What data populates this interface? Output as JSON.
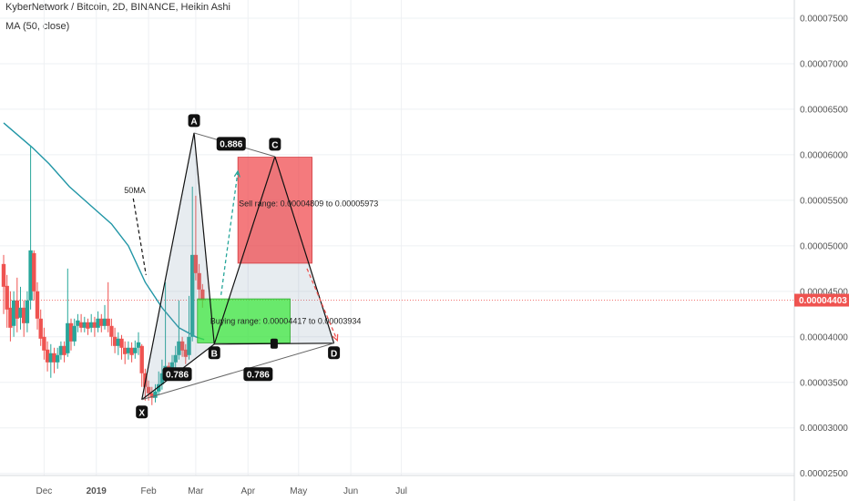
{
  "header": {
    "title": "KyberNetwork / Bitcoin, 2D, BINANCE, Heikin Ashi",
    "indicator": "MA (50, close)"
  },
  "chart_data": {
    "type": "candlestick",
    "chart_style": "Heikin Ashi",
    "x_ticks": [
      "Dec",
      "2019",
      "Feb",
      "Mar",
      "Apr",
      "May",
      "Jun",
      "Jul"
    ],
    "y_ticks": [
      "0.00007500",
      "0.00007000",
      "0.00006500",
      "0.00006000",
      "0.00005500",
      "0.00005000",
      "0.00004500",
      "0.00004000",
      "0.00003500",
      "0.00003000",
      "0.00002500"
    ],
    "ylim": [
      2.32e-05,
      7.72e-05
    ],
    "grid": true,
    "current_price": {
      "value": 4.403e-05,
      "label": "0.00004403",
      "color": "#ef5350"
    },
    "colors": {
      "up": "#26a69a",
      "down": "#ef5350",
      "ma": "#2196a6"
    },
    "ma_curve": [
      {
        "x": "2018-11-07",
        "y": 6.35e-05
      },
      {
        "x": "2018-11-24",
        "y": 6.08e-05
      },
      {
        "x": "2018-12-04",
        "y": 5.9e-05
      },
      {
        "x": "2018-12-16",
        "y": 5.65e-05
      },
      {
        "x": "2018-12-30",
        "y": 5.42e-05
      },
      {
        "x": "2019-01-10",
        "y": 5.24e-05
      },
      {
        "x": "2019-01-20",
        "y": 5e-05
      },
      {
        "x": "2019-01-30",
        "y": 4.6e-05
      },
      {
        "x": "2019-02-09",
        "y": 4.32e-05
      },
      {
        "x": "2019-02-19",
        "y": 4.1e-05
      },
      {
        "x": "2019-03-01",
        "y": 4e-05
      },
      {
        "x": "2019-03-06",
        "y": 3.97e-05
      }
    ],
    "candles": [
      {
        "t": "2018-11-07",
        "o": 4.8e-05,
        "c": 4.55e-05,
        "h": 4.9e-05,
        "l": 4.25e-05
      },
      {
        "t": "2018-11-09",
        "o": 4.56e-05,
        "c": 4.3e-05,
        "h": 4.68e-05,
        "l": 4.1e-05
      },
      {
        "t": "2018-11-11",
        "o": 4.32e-05,
        "c": 4.1e-05,
        "h": 4.5e-05,
        "l": 3.95e-05
      },
      {
        "t": "2018-11-13",
        "o": 4.12e-05,
        "c": 4.4e-05,
        "h": 4.5e-05,
        "l": 4e-05
      },
      {
        "t": "2018-11-15",
        "o": 4.4e-05,
        "c": 4.2e-05,
        "h": 4.65e-05,
        "l": 4.05e-05
      },
      {
        "t": "2018-11-17",
        "o": 4.21e-05,
        "c": 4.32e-05,
        "h": 4.55e-05,
        "l": 4.08e-05
      },
      {
        "t": "2018-11-19",
        "o": 4.32e-05,
        "c": 4.15e-05,
        "h": 4.4e-05,
        "l": 4e-05
      },
      {
        "t": "2018-11-21",
        "o": 4.15e-05,
        "c": 4.4e-05,
        "h": 4.5e-05,
        "l": 4.05e-05
      },
      {
        "t": "2018-11-23",
        "o": 4.4e-05,
        "c": 4.95e-05,
        "h": 6.1e-05,
        "l": 4.3e-05
      },
      {
        "t": "2018-11-25",
        "o": 4.92e-05,
        "c": 4.5e-05,
        "h": 4.95e-05,
        "l": 4.4e-05
      },
      {
        "t": "2018-11-27",
        "o": 4.5e-05,
        "c": 4.2e-05,
        "h": 4.6e-05,
        "l": 4.08e-05
      },
      {
        "t": "2018-11-29",
        "o": 4.2e-05,
        "c": 3.98e-05,
        "h": 4.3e-05,
        "l": 3.9e-05
      },
      {
        "t": "2018-12-01",
        "o": 4e-05,
        "c": 3.85e-05,
        "h": 4.1e-05,
        "l": 3.75e-05
      },
      {
        "t": "2018-12-03",
        "o": 3.86e-05,
        "c": 3.72e-05,
        "h": 3.95e-05,
        "l": 3.62e-05
      },
      {
        "t": "2018-12-05",
        "o": 3.72e-05,
        "c": 3.82e-05,
        "h": 3.92e-05,
        "l": 3.55e-05
      },
      {
        "t": "2018-12-07",
        "o": 3.82e-05,
        "c": 3.72e-05,
        "h": 3.88e-05,
        "l": 3.6e-05
      },
      {
        "t": "2018-12-09",
        "o": 3.72e-05,
        "c": 3.8e-05,
        "h": 3.88e-05,
        "l": 3.65e-05
      },
      {
        "t": "2018-12-11",
        "o": 3.8e-05,
        "c": 3.9e-05,
        "h": 3.95e-05,
        "l": 3.75e-05
      },
      {
        "t": "2018-12-13",
        "o": 3.9e-05,
        "c": 3.8e-05,
        "h": 3.95e-05,
        "l": 3.72e-05
      },
      {
        "t": "2018-12-15",
        "o": 3.82e-05,
        "c": 4.15e-05,
        "h": 4.75e-05,
        "l": 3.78e-05
      },
      {
        "t": "2018-12-17",
        "o": 4.15e-05,
        "c": 3.95e-05,
        "h": 4.2e-05,
        "l": 3.85e-05
      },
      {
        "t": "2018-12-19",
        "o": 3.95e-05,
        "c": 4.12e-05,
        "h": 4.2e-05,
        "l": 3.9e-05
      },
      {
        "t": "2018-12-21",
        "o": 4.12e-05,
        "c": 4.18e-05,
        "h": 4.25e-05,
        "l": 4.05e-05
      },
      {
        "t": "2018-12-23",
        "o": 4.16e-05,
        "c": 4.1e-05,
        "h": 4.25e-05,
        "l": 4.05e-05
      },
      {
        "t": "2018-12-25",
        "o": 4.1e-05,
        "c": 4.16e-05,
        "h": 4.22e-05,
        "l": 4.05e-05
      },
      {
        "t": "2018-12-27",
        "o": 4.16e-05,
        "c": 4.09e-05,
        "h": 4.2e-05,
        "l": 4.02e-05
      },
      {
        "t": "2018-12-29",
        "o": 4.1e-05,
        "c": 4.16e-05,
        "h": 4.25e-05,
        "l": 4.05e-05
      },
      {
        "t": "2018-12-31",
        "o": 4.16e-05,
        "c": 4.1e-05,
        "h": 4.22e-05,
        "l": 4e-05
      },
      {
        "t": "2019-01-02",
        "o": 4.1e-05,
        "c": 4.2e-05,
        "h": 4.28e-05,
        "l": 4.05e-05
      },
      {
        "t": "2019-01-04",
        "o": 4.2e-05,
        "c": 4.12e-05,
        "h": 4.25e-05,
        "l": 4.05e-05
      },
      {
        "t": "2019-01-06",
        "o": 4.12e-05,
        "c": 4.2e-05,
        "h": 4.35e-05,
        "l": 4.08e-05
      },
      {
        "t": "2019-01-08",
        "o": 4.2e-05,
        "c": 4.12e-05,
        "h": 4.6e-05,
        "l": 4.05e-05
      },
      {
        "t": "2019-01-10",
        "o": 4.12e-05,
        "c": 4e-05,
        "h": 4.2e-05,
        "l": 3.9e-05
      },
      {
        "t": "2019-01-12",
        "o": 4e-05,
        "c": 3.9e-05,
        "h": 4.1e-05,
        "l": 3.82e-05
      },
      {
        "t": "2019-01-14",
        "o": 3.9e-05,
        "c": 3.98e-05,
        "h": 4.05e-05,
        "l": 3.8e-05
      },
      {
        "t": "2019-01-16",
        "o": 3.98e-05,
        "c": 3.88e-05,
        "h": 4.02e-05,
        "l": 3.75e-05
      },
      {
        "t": "2019-01-18",
        "o": 3.88e-05,
        "c": 3.81e-05,
        "h": 3.95e-05,
        "l": 3.7e-05
      },
      {
        "t": "2019-01-20",
        "o": 3.82e-05,
        "c": 3.88e-05,
        "h": 3.95e-05,
        "l": 3.75e-05
      },
      {
        "t": "2019-01-22",
        "o": 3.88e-05,
        "c": 3.8e-05,
        "h": 3.94e-05,
        "l": 3.72e-05
      },
      {
        "t": "2019-01-24",
        "o": 3.82e-05,
        "c": 3.88e-05,
        "h": 3.96e-05,
        "l": 3.76e-05
      },
      {
        "t": "2019-01-26",
        "o": 3.88e-05,
        "c": 3.94e-05,
        "h": 4.05e-05,
        "l": 3.8e-05
      },
      {
        "t": "2019-01-28",
        "o": 3.9e-05,
        "c": 3.6e-05,
        "h": 3.92e-05,
        "l": 3.45e-05
      },
      {
        "t": "2019-01-30",
        "o": 3.6e-05,
        "c": 3.45e-05,
        "h": 3.65e-05,
        "l": 3.3e-05
      },
      {
        "t": "2019-02-01",
        "o": 3.45e-05,
        "c": 3.38e-05,
        "h": 3.52e-05,
        "l": 3.3e-05
      },
      {
        "t": "2019-02-03",
        "o": 3.38e-05,
        "c": 3.33e-05,
        "h": 3.45e-05,
        "l": 3.25e-05
      },
      {
        "t": "2019-02-05",
        "o": 3.33e-05,
        "c": 3.4e-05,
        "h": 3.48e-05,
        "l": 3.28e-05
      },
      {
        "t": "2019-02-07",
        "o": 3.4e-05,
        "c": 3.48e-05,
        "h": 3.62e-05,
        "l": 3.36e-05
      },
      {
        "t": "2019-02-09",
        "o": 3.48e-05,
        "c": 3.6e-05,
        "h": 3.75e-05,
        "l": 3.42e-05
      },
      {
        "t": "2019-02-11",
        "o": 3.6e-05,
        "c": 3.68e-05,
        "h": 4.6e-05,
        "l": 3.55e-05
      },
      {
        "t": "2019-02-13",
        "o": 3.68e-05,
        "c": 3.6e-05,
        "h": 3.72e-05,
        "l": 3.52e-05
      },
      {
        "t": "2019-02-15",
        "o": 3.6e-05,
        "c": 3.72e-05,
        "h": 3.8e-05,
        "l": 3.56e-05
      },
      {
        "t": "2019-02-17",
        "o": 3.72e-05,
        "c": 3.8e-05,
        "h": 3.9e-05,
        "l": 3.65e-05
      },
      {
        "t": "2019-02-19",
        "o": 3.8e-05,
        "c": 3.95e-05,
        "h": 4.4e-05,
        "l": 3.75e-05
      },
      {
        "t": "2019-02-21",
        "o": 3.95e-05,
        "c": 3.85e-05,
        "h": 4e-05,
        "l": 3.78e-05
      },
      {
        "t": "2019-02-23",
        "o": 3.86e-05,
        "c": 3.78e-05,
        "h": 3.92e-05,
        "l": 3.7e-05
      },
      {
        "t": "2019-02-25",
        "o": 3.8e-05,
        "c": 4e-05,
        "h": 4.45e-05,
        "l": 3.75e-05
      },
      {
        "t": "2019-02-27",
        "o": 4e-05,
        "c": 4.9e-05,
        "h": 5.65e-05,
        "l": 3.95e-05
      },
      {
        "t": "2019-03-01",
        "o": 4.9e-05,
        "c": 4.7e-05,
        "h": 5.55e-05,
        "l": 4.62e-05
      },
      {
        "t": "2019-03-03",
        "o": 4.7e-05,
        "c": 4.52e-05,
        "h": 4.8e-05,
        "l": 4.4e-05
      },
      {
        "t": "2019-03-05",
        "o": 4.52e-05,
        "c": 4.4e-05,
        "h": 4.58e-05,
        "l": 4.32e-05
      }
    ],
    "pattern": {
      "points": [
        {
          "label": "X",
          "t": "2019-01-28",
          "p": 3.31e-05
        },
        {
          "label": "A",
          "t": "2019-02-28",
          "p": 6.24e-05
        },
        {
          "label": "B",
          "t": "2019-03-12",
          "p": 3.92e-05
        },
        {
          "label": "C",
          "t": "2019-04-17",
          "p": 5.98e-05
        },
        {
          "label": "D",
          "t": "2019-05-22",
          "p": 3.93e-05
        }
      ],
      "ratios": [
        {
          "value": "0.886",
          "t": "2019-03-22",
          "p": 6.12e-05
        },
        {
          "value": "0.786",
          "t": "2019-02-18",
          "p": 3.59e-05
        },
        {
          "value": "0.786",
          "t": "2019-04-07",
          "p": 3.59e-05
        }
      ]
    },
    "buy_zone": {
      "text": "Buying range: 0.00004417 to 0.00003934",
      "top": 4.417e-05,
      "bottom": 3.934e-05,
      "t_start": "2019-03-02",
      "t_end": "2019-04-26"
    },
    "sell_zone": {
      "text": "Sell range: 0.00004809 to 0.00005973",
      "top": 5.973e-05,
      "bottom": 4.809e-05,
      "t_start": "2019-03-26",
      "t_end": "2019-05-09"
    },
    "annotations": [
      {
        "text": "50MA",
        "t": "2019-01-24",
        "p": 5.58e-05
      }
    ],
    "arrows": [
      {
        "from": {
          "t": "2019-03-16",
          "p": 4.46e-05
        },
        "to": {
          "t": "2019-03-26",
          "p": 5.82e-05
        },
        "color": "#26a69a"
      },
      {
        "from": {
          "t": "2019-05-06",
          "p": 4.75e-05
        },
        "to": {
          "t": "2019-05-24",
          "p": 3.96e-05
        },
        "color": "#ef5350"
      }
    ]
  }
}
